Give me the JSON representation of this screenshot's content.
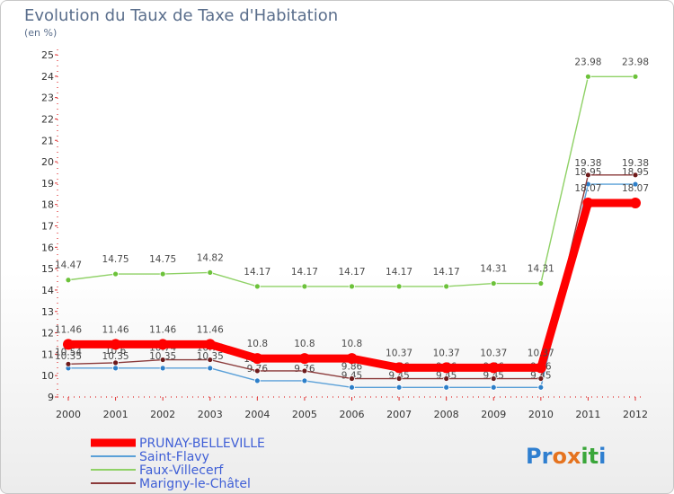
{
  "title": "Evolution du Taux de Taxe d'Habitation",
  "subtitle": "(en %)",
  "logo": "Proxiti",
  "colors": {
    "logo_letters": [
      "#2f7fd0",
      "#2f7fd0",
      "#e5731f",
      "#e5731f",
      "#3aa63a",
      "#3aa63a",
      "#2f7fd0"
    ]
  },
  "chart_data": {
    "type": "line",
    "x": [
      2000,
      2001,
      2002,
      2003,
      2004,
      2005,
      2006,
      2007,
      2008,
      2009,
      2010,
      2011,
      2012
    ],
    "xlabel": "",
    "ylabel": "",
    "ylim": [
      9,
      25
    ],
    "yticks": [
      9,
      10,
      11,
      12,
      13,
      14,
      15,
      16,
      17,
      18,
      19,
      20,
      21,
      22,
      23,
      24,
      25
    ],
    "grid": false,
    "legend": "bottom-left",
    "series": [
      {
        "name": "PRUNAY-BELLEVILLE",
        "color": "#ff0000",
        "values": [
          11.46,
          11.46,
          11.46,
          11.46,
          10.8,
          10.8,
          10.8,
          10.37,
          10.37,
          10.37,
          10.37,
          18.07,
          18.07
        ],
        "labels": [
          "11.46",
          "11.46",
          "11.46",
          "11.46",
          "10.8",
          "10.8",
          "10.8",
          "10.37",
          "10.37",
          "10.37",
          "10.37",
          "18.07",
          "18.07"
        ]
      },
      {
        "name": "Saint-Flavy",
        "color": "#5aa0d8",
        "values": [
          10.35,
          10.35,
          10.35,
          10.35,
          9.76,
          9.76,
          9.45,
          9.45,
          9.45,
          9.45,
          9.45,
          18.95,
          18.95
        ],
        "labels": [
          "10.35",
          "10.35",
          "10.35",
          "10.35",
          "9.76",
          "9.76",
          "9.45",
          "9.45",
          "9.45",
          "9.45",
          "9.45",
          "18.95",
          "18.95"
        ]
      },
      {
        "name": "Faux-Villecerf",
        "color": "#8fd166",
        "values": [
          14.47,
          14.75,
          14.75,
          14.82,
          14.17,
          14.17,
          14.17,
          14.17,
          14.17,
          14.31,
          14.31,
          23.98,
          23.98
        ],
        "labels": [
          "14.47",
          "14.75",
          "14.75",
          "14.82",
          "14.17",
          "14.17",
          "14.17",
          "14.17",
          "14.17",
          "14.31",
          "14.31",
          "23.98",
          "23.98"
        ]
      },
      {
        "name": "Marigny-le-Châtel",
        "color": "#8b3a3a",
        "values": [
          10.54,
          10.6,
          10.74,
          10.74,
          10.22,
          10.22,
          9.86,
          9.86,
          9.86,
          9.86,
          9.86,
          19.38,
          19.38
        ],
        "labels": [
          "10.54",
          "10.6",
          "10.74",
          "10.74",
          "10.22",
          "10.22",
          "9.86",
          "9.86",
          "9.86",
          "9.86",
          "9.86",
          "19.38",
          "19.38"
        ]
      }
    ]
  }
}
